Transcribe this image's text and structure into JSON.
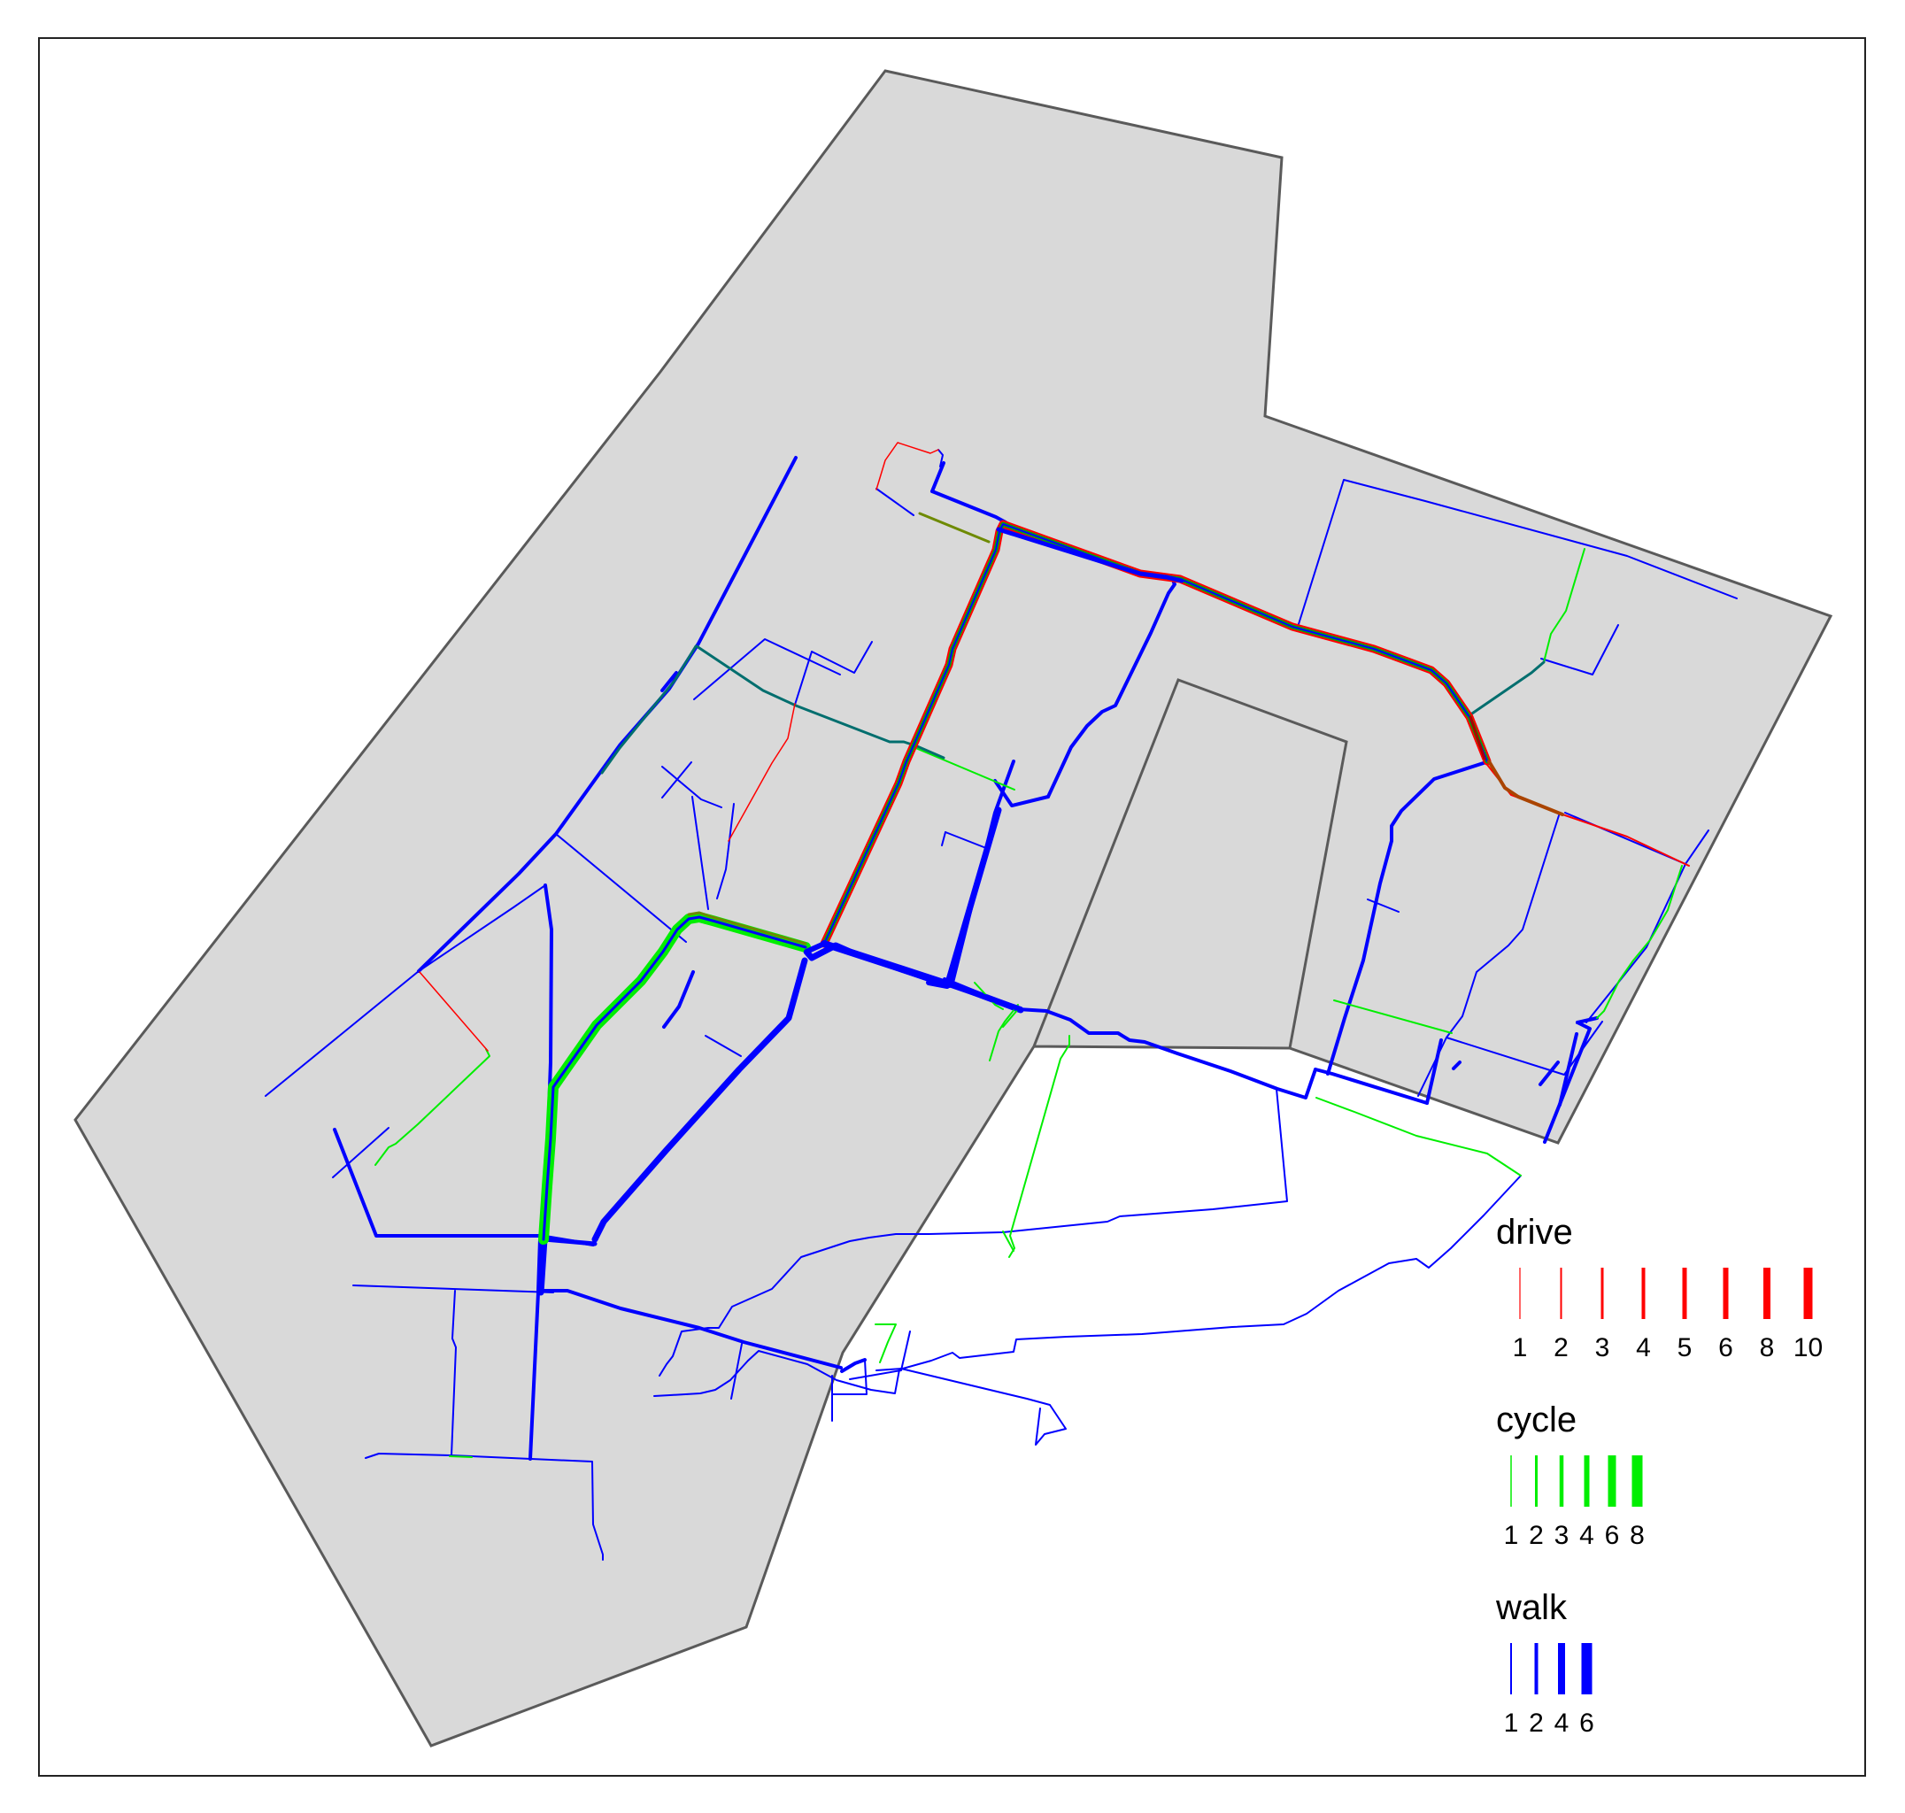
{
  "map": {
    "colors": {
      "area_fill": "#d9d9d9",
      "area_stroke": "#5a5a5a",
      "drive": "#ff0000",
      "cycle": "#00ee00",
      "walk": "#0000ff",
      "mixed_cycle_walk": "#006e6e",
      "mixed_drive_cycle": "#6e8a00"
    }
  },
  "legend": {
    "drive": {
      "title": "drive",
      "color": "#ff0000",
      "labels": [
        "1",
        "2",
        "3",
        "4",
        "5",
        "6",
        "8",
        "10"
      ]
    },
    "cycle": {
      "title": "cycle",
      "color": "#00ee00",
      "labels": [
        "1",
        "2",
        "3",
        "4",
        "6",
        "8"
      ]
    },
    "walk": {
      "title": "walk",
      "color": "#0000ff",
      "labels": [
        "1",
        "2",
        "4",
        "6"
      ]
    }
  }
}
